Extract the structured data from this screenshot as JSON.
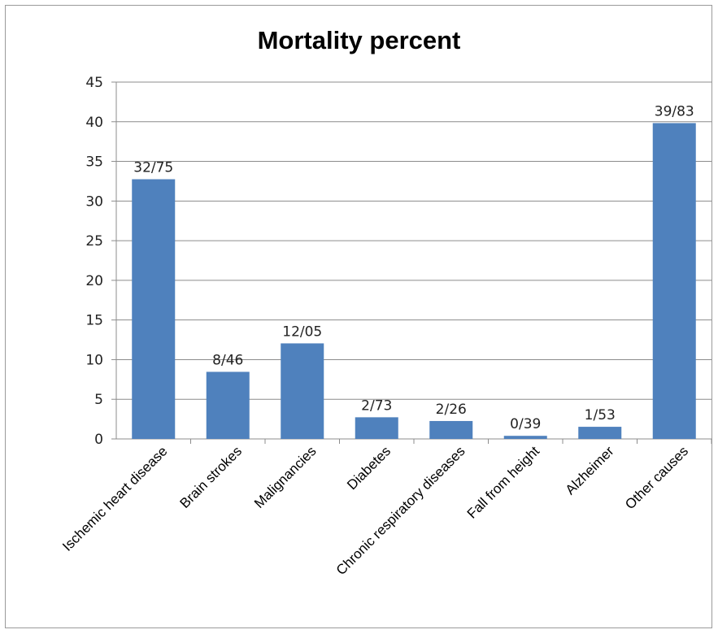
{
  "chart_data": {
    "type": "bar",
    "title": "Mortality percent",
    "categories": [
      "Ischemic heart disease",
      "Brain strokes",
      "Malignancies",
      "Diabetes",
      "Chronic respiratory diseases",
      "Fall from height",
      "Alzheimer",
      "Other causes"
    ],
    "values": [
      32.75,
      8.46,
      12.05,
      2.73,
      2.26,
      0.39,
      1.53,
      39.83
    ],
    "data_labels": [
      "32/75",
      "8/46",
      "12/05",
      "2/73",
      "2/26",
      "0/39",
      "1/53",
      "39/83"
    ],
    "ylim": [
      0,
      45
    ],
    "yticks": [
      0,
      5,
      10,
      15,
      20,
      25,
      30,
      35,
      40,
      45
    ],
    "grid": true,
    "legend": "none",
    "bar_color": "#4f81bd"
  }
}
